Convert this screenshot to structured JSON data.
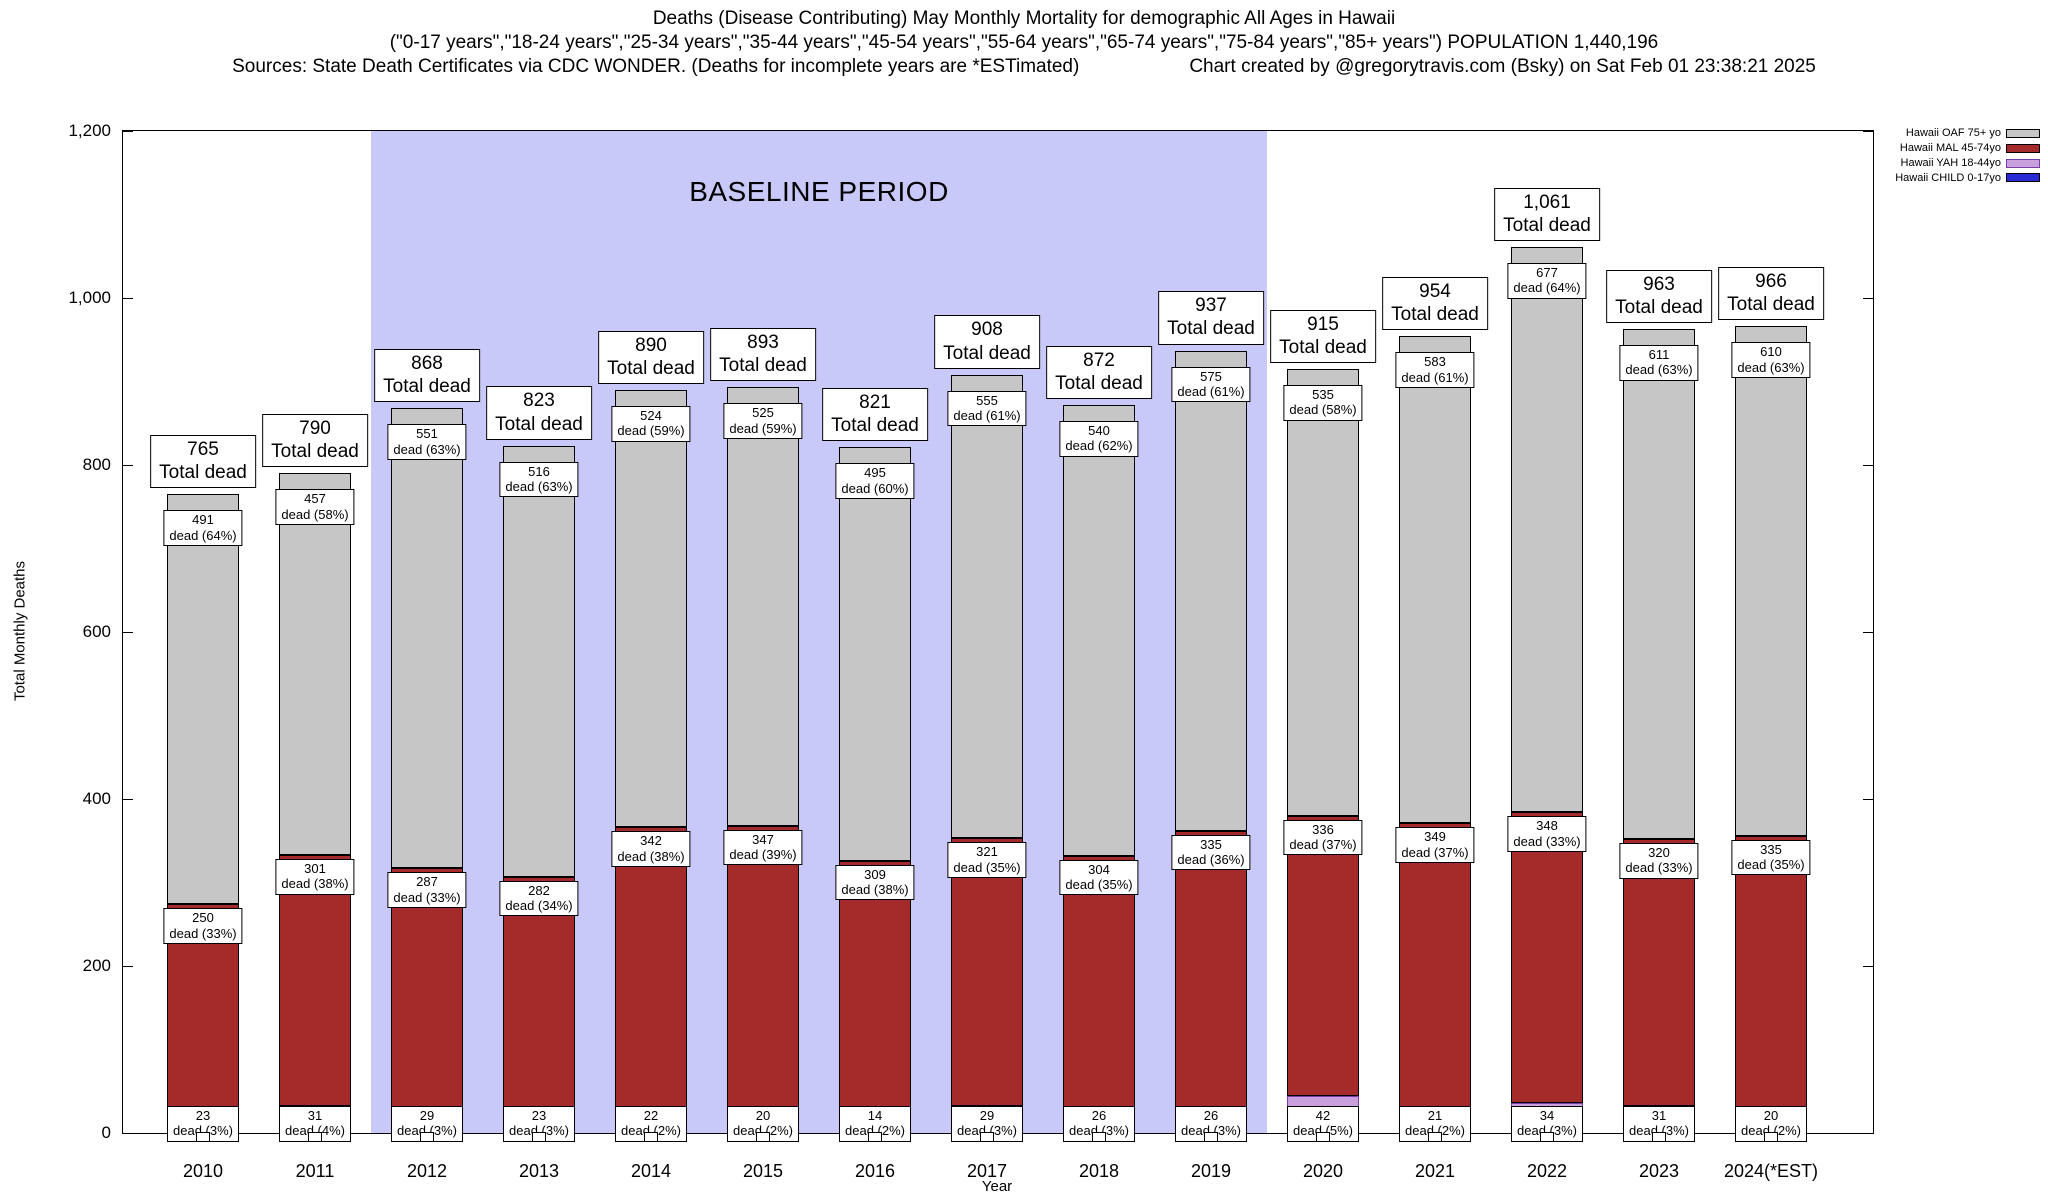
{
  "header": {
    "line1": "Deaths (Disease Contributing) May Monthly Mortality for demographic All Ages in Hawaii",
    "line2": "(\"0-17 years\",\"18-24 years\",\"25-34 years\",\"35-44 years\",\"45-54 years\",\"55-64 years\",\"65-74 years\",\"75-84 years\",\"85+ years\") POPULATION 1,440,196",
    "sources": "Sources: State Death Certificates via CDC WONDER. (Deaths for incomplete years are *ESTimated)",
    "credit": "Chart created by @gregorytravis.com (Bsky) on Sat Feb 01 23:38:21 2025"
  },
  "chart_data": {
    "type": "bar",
    "stacked": true,
    "title": "Deaths (Disease Contributing) May Monthly Mortality for demographic All Ages in Hawaii",
    "xlabel": "Year",
    "ylabel": "Total Monthly Deaths",
    "ylim": [
      0,
      1200
    ],
    "ytick_values": [
      0,
      200,
      400,
      600,
      800,
      1000,
      1200
    ],
    "ytick_labels": [
      "0",
      "200",
      "400",
      "600",
      "800",
      "1,000",
      "1,200"
    ],
    "grid": false,
    "legend_position": "top-right",
    "categories": [
      "2010",
      "2011",
      "2012",
      "2013",
      "2014",
      "2015",
      "2016",
      "2017",
      "2018",
      "2019",
      "2020",
      "2021",
      "2022",
      "2023",
      "2024(*EST)"
    ],
    "totals": [
      765,
      790,
      868,
      823,
      890,
      893,
      821,
      908,
      872,
      937,
      915,
      954,
      1061,
      963,
      966
    ],
    "total_labels": [
      "765",
      "790",
      "868",
      "823",
      "890",
      "893",
      "821",
      "908",
      "872",
      "937",
      "915",
      "954",
      "1,061",
      "963",
      "966"
    ],
    "total_suffix": "Total dead",
    "label_word": "dead",
    "baseline": {
      "label": "BASELINE PERIOD",
      "start_index": 2,
      "end_index": 9,
      "color": "#c9c9f9"
    },
    "series": [
      {
        "name": "Hawaii OAF 75+ yo",
        "color": "#c6c6c6",
        "border": "#000000",
        "values": [
          491,
          457,
          551,
          516,
          524,
          525,
          495,
          555,
          540,
          575,
          535,
          583,
          677,
          611,
          610
        ],
        "pcts": [
          64,
          58,
          63,
          63,
          59,
          59,
          60,
          61,
          62,
          61,
          58,
          61,
          64,
          63,
          63
        ]
      },
      {
        "name": "Hawaii MAL 45-74yo",
        "color": "#a52a2a",
        "border": "#000000",
        "values": [
          250,
          301,
          287,
          282,
          342,
          347,
          309,
          321,
          304,
          335,
          336,
          349,
          348,
          320,
          335
        ],
        "pcts": [
          33,
          38,
          33,
          34,
          38,
          39,
          38,
          35,
          35,
          36,
          37,
          37,
          33,
          33,
          35
        ]
      },
      {
        "name": "Hawaii YAH 18-44yo",
        "color": "#c9a0dc",
        "border": "#7a3bab",
        "values": [
          23,
          31,
          29,
          23,
          22,
          20,
          14,
          29,
          26,
          26,
          42,
          21,
          34,
          31,
          20
        ],
        "pcts": [
          3,
          4,
          3,
          3,
          2,
          2,
          2,
          3,
          3,
          3,
          5,
          2,
          3,
          3,
          2
        ]
      },
      {
        "name": "Hawaii CHILD 0-17yo",
        "color": "#2a2ad4",
        "border": "#000000",
        "values": null,
        "remainder": true
      }
    ]
  }
}
